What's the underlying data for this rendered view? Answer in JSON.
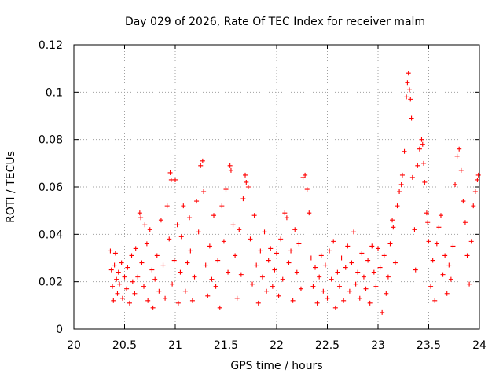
{
  "chart_data": {
    "type": "scatter",
    "title": "Day 029 of 2026, Rate Of TEC Index for receiver malm",
    "xlabel": "GPS time / hours",
    "ylabel": "ROTI / TECUs",
    "xlim": [
      20,
      24
    ],
    "ylim": [
      0,
      0.12
    ],
    "x_ticks": [
      20,
      20.5,
      21,
      21.5,
      22,
      22.5,
      23,
      23.5,
      24
    ],
    "x_tick_labels": [
      "20",
      "20.5",
      "21",
      "21.5",
      "22",
      "22.5",
      "23",
      "23.5",
      "24"
    ],
    "y_ticks": [
      0,
      0.02,
      0.04,
      0.06,
      0.08,
      0.1,
      0.12
    ],
    "y_tick_labels": [
      "0",
      "0.02",
      "0.04",
      "0.06",
      "0.08",
      "0.1",
      "0.12"
    ],
    "grid": true,
    "marker": "+",
    "color": "#ff0000",
    "series": [
      {
        "name": "ROTI",
        "points": [
          [
            20.36,
            0.033
          ],
          [
            20.37,
            0.025
          ],
          [
            20.38,
            0.018
          ],
          [
            20.39,
            0.012
          ],
          [
            20.4,
            0.027
          ],
          [
            20.41,
            0.032
          ],
          [
            20.42,
            0.021
          ],
          [
            20.43,
            0.015
          ],
          [
            20.44,
            0.024
          ],
          [
            20.45,
            0.019
          ],
          [
            20.47,
            0.028
          ],
          [
            20.48,
            0.013
          ],
          [
            20.5,
            0.022
          ],
          [
            20.52,
            0.017
          ],
          [
            20.53,
            0.026
          ],
          [
            20.55,
            0.011
          ],
          [
            20.57,
            0.031
          ],
          [
            20.58,
            0.02
          ],
          [
            20.6,
            0.015
          ],
          [
            20.61,
            0.034
          ],
          [
            20.63,
            0.022
          ],
          [
            20.65,
            0.049
          ],
          [
            20.66,
            0.047
          ],
          [
            20.67,
            0.028
          ],
          [
            20.69,
            0.018
          ],
          [
            20.7,
            0.044
          ],
          [
            20.72,
            0.036
          ],
          [
            20.73,
            0.012
          ],
          [
            20.75,
            0.042
          ],
          [
            20.77,
            0.025
          ],
          [
            20.78,
            0.009
          ],
          [
            20.8,
            0.021
          ],
          [
            20.82,
            0.031
          ],
          [
            20.84,
            0.016
          ],
          [
            20.86,
            0.046
          ],
          [
            20.88,
            0.027
          ],
          [
            20.9,
            0.013
          ],
          [
            20.92,
            0.052
          ],
          [
            20.94,
            0.038
          ],
          [
            20.95,
            0.066
          ],
          [
            20.96,
            0.063
          ],
          [
            20.97,
            0.019
          ],
          [
            20.99,
            0.029
          ],
          [
            21.0,
            0.063
          ],
          [
            21.02,
            0.044
          ],
          [
            21.03,
            0.011
          ],
          [
            21.05,
            0.024
          ],
          [
            21.06,
            0.039
          ],
          [
            21.08,
            0.052
          ],
          [
            21.1,
            0.016
          ],
          [
            21.12,
            0.028
          ],
          [
            21.14,
            0.047
          ],
          [
            21.15,
            0.033
          ],
          [
            21.17,
            0.012
          ],
          [
            21.19,
            0.022
          ],
          [
            21.21,
            0.054
          ],
          [
            21.23,
            0.041
          ],
          [
            21.25,
            0.069
          ],
          [
            21.27,
            0.071
          ],
          [
            21.28,
            0.058
          ],
          [
            21.3,
            0.027
          ],
          [
            21.32,
            0.014
          ],
          [
            21.34,
            0.035
          ],
          [
            21.36,
            0.021
          ],
          [
            21.38,
            0.048
          ],
          [
            21.4,
            0.018
          ],
          [
            21.42,
            0.029
          ],
          [
            21.44,
            0.009
          ],
          [
            21.46,
            0.052
          ],
          [
            21.48,
            0.037
          ],
          [
            21.5,
            0.059
          ],
          [
            21.52,
            0.024
          ],
          [
            21.54,
            0.069
          ],
          [
            21.55,
            0.067
          ],
          [
            21.57,
            0.044
          ],
          [
            21.59,
            0.031
          ],
          [
            21.61,
            0.013
          ],
          [
            21.63,
            0.042
          ],
          [
            21.65,
            0.023
          ],
          [
            21.67,
            0.055
          ],
          [
            21.69,
            0.065
          ],
          [
            21.7,
            0.062
          ],
          [
            21.72,
            0.06
          ],
          [
            21.74,
            0.038
          ],
          [
            21.76,
            0.019
          ],
          [
            21.78,
            0.048
          ],
          [
            21.8,
            0.027
          ],
          [
            21.82,
            0.011
          ],
          [
            21.84,
            0.033
          ],
          [
            21.86,
            0.022
          ],
          [
            21.88,
            0.041
          ],
          [
            21.9,
            0.016
          ],
          [
            21.92,
            0.029
          ],
          [
            21.94,
            0.034
          ],
          [
            21.96,
            0.018
          ],
          [
            21.98,
            0.025
          ],
          [
            22.0,
            0.032
          ],
          [
            22.02,
            0.014
          ],
          [
            22.04,
            0.038
          ],
          [
            22.06,
            0.021
          ],
          [
            22.08,
            0.049
          ],
          [
            22.1,
            0.047
          ],
          [
            22.12,
            0.028
          ],
          [
            22.14,
            0.033
          ],
          [
            22.16,
            0.012
          ],
          [
            22.18,
            0.042
          ],
          [
            22.2,
            0.024
          ],
          [
            22.22,
            0.036
          ],
          [
            22.24,
            0.017
          ],
          [
            22.26,
            0.064
          ],
          [
            22.28,
            0.065
          ],
          [
            22.3,
            0.059
          ],
          [
            22.32,
            0.049
          ],
          [
            22.34,
            0.03
          ],
          [
            22.36,
            0.018
          ],
          [
            22.38,
            0.026
          ],
          [
            22.4,
            0.011
          ],
          [
            22.42,
            0.022
          ],
          [
            22.44,
            0.031
          ],
          [
            22.46,
            0.016
          ],
          [
            22.48,
            0.027
          ],
          [
            22.5,
            0.013
          ],
          [
            22.52,
            0.033
          ],
          [
            22.54,
            0.021
          ],
          [
            22.56,
            0.037
          ],
          [
            22.58,
            0.009
          ],
          [
            22.6,
            0.024
          ],
          [
            22.62,
            0.018
          ],
          [
            22.64,
            0.03
          ],
          [
            22.66,
            0.012
          ],
          [
            22.68,
            0.026
          ],
          [
            22.7,
            0.035
          ],
          [
            22.72,
            0.016
          ],
          [
            22.74,
            0.028
          ],
          [
            22.76,
            0.041
          ],
          [
            22.78,
            0.019
          ],
          [
            22.8,
            0.024
          ],
          [
            22.82,
            0.013
          ],
          [
            22.84,
            0.032
          ],
          [
            22.86,
            0.022
          ],
          [
            22.88,
            0.017
          ],
          [
            22.9,
            0.029
          ],
          [
            22.92,
            0.011
          ],
          [
            22.94,
            0.035
          ],
          [
            22.96,
            0.024
          ],
          [
            22.98,
            0.018
          ],
          [
            23.0,
            0.034
          ],
          [
            23.02,
            0.026
          ],
          [
            23.04,
            0.007
          ],
          [
            23.06,
            0.031
          ],
          [
            23.08,
            0.015
          ],
          [
            23.1,
            0.022
          ],
          [
            23.12,
            0.036
          ],
          [
            23.14,
            0.046
          ],
          [
            23.15,
            0.043
          ],
          [
            23.17,
            0.028
          ],
          [
            23.19,
            0.052
          ],
          [
            23.21,
            0.058
          ],
          [
            23.23,
            0.061
          ],
          [
            23.24,
            0.065
          ],
          [
            23.26,
            0.075
          ],
          [
            23.28,
            0.098
          ],
          [
            23.29,
            0.104
          ],
          [
            23.3,
            0.108
          ],
          [
            23.31,
            0.101
          ],
          [
            23.32,
            0.097
          ],
          [
            23.33,
            0.089
          ],
          [
            23.34,
            0.064
          ],
          [
            23.36,
            0.042
          ],
          [
            23.37,
            0.025
          ],
          [
            23.39,
            0.069
          ],
          [
            23.41,
            0.076
          ],
          [
            23.43,
            0.08
          ],
          [
            23.44,
            0.078
          ],
          [
            23.45,
            0.07
          ],
          [
            23.46,
            0.062
          ],
          [
            23.48,
            0.049
          ],
          [
            23.49,
            0.045
          ],
          [
            23.5,
            0.037
          ],
          [
            23.52,
            0.018
          ],
          [
            23.54,
            0.029
          ],
          [
            23.56,
            0.012
          ],
          [
            23.58,
            0.036
          ],
          [
            23.6,
            0.043
          ],
          [
            23.62,
            0.048
          ],
          [
            23.64,
            0.023
          ],
          [
            23.66,
            0.031
          ],
          [
            23.68,
            0.015
          ],
          [
            23.7,
            0.027
          ],
          [
            23.72,
            0.021
          ],
          [
            23.74,
            0.035
          ],
          [
            23.76,
            0.061
          ],
          [
            23.78,
            0.073
          ],
          [
            23.8,
            0.076
          ],
          [
            23.82,
            0.067
          ],
          [
            23.84,
            0.054
          ],
          [
            23.86,
            0.045
          ],
          [
            23.88,
            0.031
          ],
          [
            23.9,
            0.019
          ],
          [
            23.92,
            0.037
          ],
          [
            23.94,
            0.052
          ],
          [
            23.96,
            0.058
          ],
          [
            23.98,
            0.063
          ],
          [
            23.99,
            0.065
          ]
        ]
      }
    ]
  }
}
